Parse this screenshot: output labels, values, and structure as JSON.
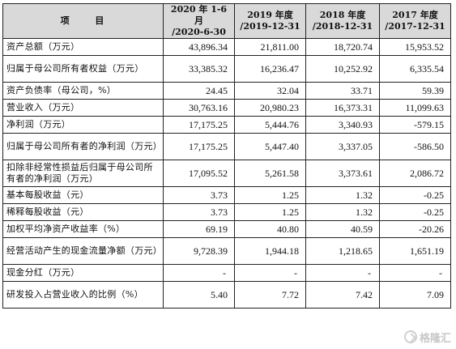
{
  "table": {
    "headers": [
      "项 目",
      "2020 年 1-6 月\n/2020-6-30",
      "2019 年度\n/2019-12-31",
      "2018 年度\n/2018-12-31",
      "2017 年度\n/2017-12-31"
    ],
    "rows": [
      {
        "label": "资产总额（万元）",
        "values": [
          "43,896.34",
          "21,811.00",
          "18,720.74",
          "15,953.52"
        ]
      },
      {
        "label": "归属于母公司所有者权益（万元）",
        "values": [
          "33,385.32",
          "16,236.47",
          "10,252.92",
          "6,335.54"
        ]
      },
      {
        "label": "资产负债率（母公司，%）",
        "values": [
          "24.45",
          "32.04",
          "33.71",
          "59.39"
        ]
      },
      {
        "label": "营业收入（万元）",
        "values": [
          "30,763.16",
          "20,980.23",
          "16,373.31",
          "11,099.63"
        ]
      },
      {
        "label": "净利润（万元）",
        "values": [
          "17,175.25",
          "5,444.76",
          "3,340.93",
          "-579.15"
        ]
      },
      {
        "label": "归属于母公司所有者的净利润（万元）",
        "values": [
          "17,175.25",
          "5,447.40",
          "3,337.05",
          "-586.50"
        ]
      },
      {
        "label": "扣除非经常性损益后归属于母公司所有者的净利润（万元）",
        "values": [
          "17,095.52",
          "5,261.58",
          "3,373.61",
          "2,086.72"
        ]
      },
      {
        "label": "基本每股收益（元）",
        "values": [
          "3.73",
          "1.25",
          "1.32",
          "-0.25"
        ]
      },
      {
        "label": "稀释每股收益（元）",
        "values": [
          "3.73",
          "1.25",
          "1.32",
          "-0.25"
        ]
      },
      {
        "label": "加权平均净资产收益率（%）",
        "values": [
          "69.19",
          "40.80",
          "40.59",
          "-20.26"
        ]
      },
      {
        "label": "经营活动产生的现金流量净额（万元）",
        "values": [
          "9,728.39",
          "1,944.18",
          "1,218.65",
          "1,651.19"
        ]
      },
      {
        "label": "现金分红（万元）",
        "values": [
          "-",
          "-",
          "-",
          "-"
        ]
      },
      {
        "label": "研发投入占营业收入的比例（%）",
        "values": [
          "5.40",
          "7.72",
          "7.42",
          "7.09"
        ]
      }
    ]
  },
  "watermark": {
    "text": "格隆汇",
    "icon": "gelonghui-logo-icon"
  },
  "colors": {
    "header_bg": "#d9d9d9",
    "border": "#222222"
  }
}
